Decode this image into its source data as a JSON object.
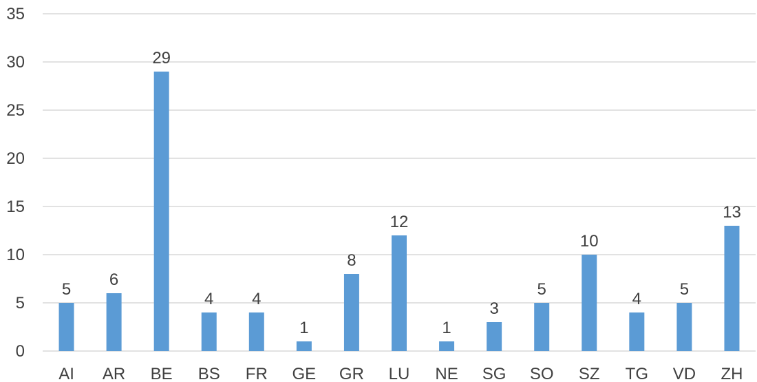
{
  "chart_data": {
    "type": "bar",
    "categories": [
      "AI",
      "AR",
      "BE",
      "BS",
      "FR",
      "GE",
      "GR",
      "LU",
      "NE",
      "SG",
      "SO",
      "SZ",
      "TG",
      "VD",
      "ZH"
    ],
    "values": [
      5,
      6,
      29,
      4,
      4,
      1,
      8,
      12,
      1,
      3,
      5,
      10,
      4,
      5,
      13
    ],
    "data_labels": [
      "5",
      "6",
      "29",
      "4",
      "4",
      "1",
      "8",
      "12",
      "1",
      "3",
      "5",
      "10",
      "4",
      "5",
      "13"
    ],
    "ylim": [
      0,
      35
    ],
    "yticks": [
      "0",
      "5",
      "10",
      "15",
      "20",
      "25",
      "30",
      "35"
    ],
    "grid": true,
    "legend": "none",
    "bar_color": "#5b9bd5"
  }
}
